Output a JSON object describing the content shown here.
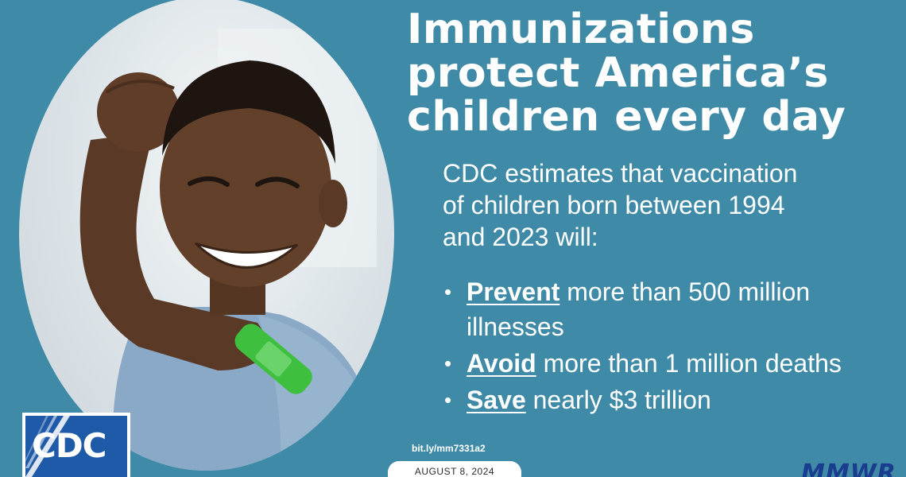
{
  "headline": {
    "lines": [
      "Immunizations",
      "protect America’s",
      "children every day"
    ]
  },
  "intro": {
    "lines": [
      "CDC estimates that vaccination",
      "of children born between 1994",
      "and 2023 will:"
    ]
  },
  "bullets": [
    {
      "keyword": "Prevent",
      "rest": " more than 500 million",
      "cont": "illnesses"
    },
    {
      "keyword": "Avoid",
      "rest": " more than 1 million deaths",
      "cont": ""
    },
    {
      "keyword": "Save",
      "rest": " nearly $3 trillion",
      "cont": ""
    }
  ],
  "footer": {
    "link": "bit.ly/mm7331a2",
    "date": "AUGUST 8, 2024",
    "publication": "MMWR"
  },
  "logo": {
    "text": "CDC"
  },
  "colors": {
    "background": "#3f8aa6",
    "text": "#ffffff",
    "logo_blue": "#1f5aa8",
    "bandage": "#3fbf3f",
    "mmwr": "#1a3d8f"
  },
  "icons": {
    "photo": "child-flexing-arm-photo",
    "logo": "cdc-logo-icon"
  }
}
